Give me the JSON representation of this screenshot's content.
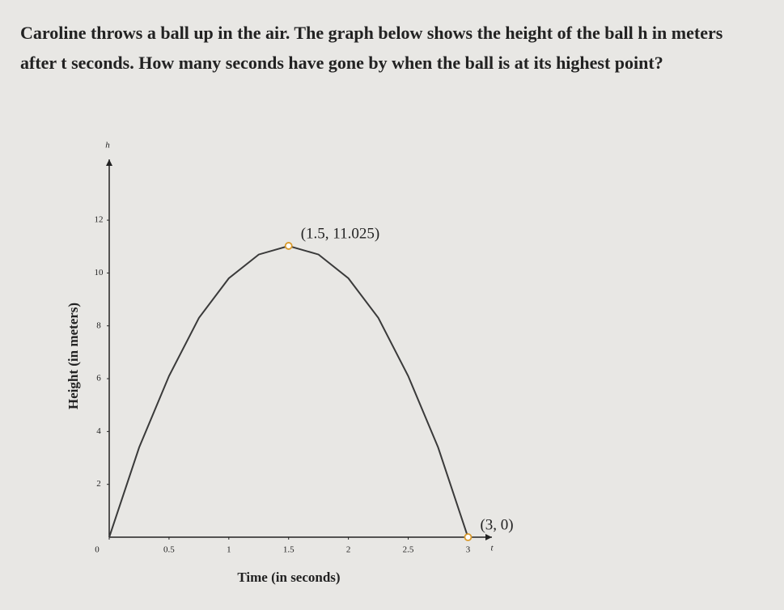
{
  "question": "Caroline throws a ball up in the air. The graph below shows the height of the ball h in meters after t seconds. How many seconds have gone by when the ball is at its highest point?",
  "chart_data": {
    "type": "line",
    "x_axis_label": "Time (in seconds)",
    "y_axis_label": "Height (in meters)",
    "x_axis_name": "t",
    "y_axis_name": "h",
    "x": [
      0,
      0.25,
      0.5,
      0.75,
      1,
      1.25,
      1.5,
      1.75,
      2,
      2.25,
      2.5,
      2.75,
      3
    ],
    "values": [
      0,
      3.4,
      6.1,
      8.3,
      9.8,
      10.7,
      11.025,
      10.7,
      9.8,
      8.3,
      6.1,
      3.4,
      0
    ],
    "color": "#3a3a3a",
    "xlim": [
      0,
      3.2
    ],
    "ylim": [
      0,
      14.3
    ],
    "xticks": [
      0,
      0.5,
      1,
      1.5,
      2,
      2.5,
      3
    ],
    "yticks": [
      2,
      4,
      6,
      8,
      10,
      12
    ],
    "annotations": [
      {
        "text": "(1.5, 11.025)",
        "x": 1.5,
        "y": 11.025
      },
      {
        "text": "(3, 0)",
        "x": 3,
        "y": 0
      }
    ]
  }
}
